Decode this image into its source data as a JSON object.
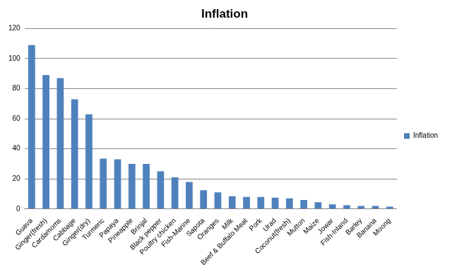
{
  "chart_data": {
    "type": "bar",
    "title": "Inflation",
    "categories": [
      "Guava",
      "Ginger(fresh)",
      "Cardamoms",
      "Cabbage",
      "Ginger(dry)",
      "Turmeric",
      "Papaya",
      "Pineapple",
      "Brinjal",
      "Black pepper",
      "Poultry chicken",
      "Fish-Marine",
      "Sapota",
      "Oranges",
      "Milk",
      "Beef & Buffalo Meat",
      "Pork",
      "Urad",
      "Coconut(fresh)",
      "Mutton",
      "Maize",
      "Jowar",
      "Fish-Inland",
      "Barley",
      "Banana",
      "Moong"
    ],
    "series": [
      {
        "name": "Inflation",
        "color": "#4f81bd",
        "values": [
          109,
          89,
          87,
          73,
          63,
          33.5,
          33,
          30,
          30,
          25,
          21,
          18,
          12.5,
          11,
          8.5,
          8,
          8,
          7.5,
          7,
          6,
          4.5,
          3,
          2.5,
          2,
          2,
          1.5
        ]
      }
    ],
    "ylim": [
      0,
      120
    ],
    "yticks": [
      0,
      20,
      40,
      60,
      80,
      100,
      120
    ],
    "grid": true,
    "legend": "right"
  }
}
